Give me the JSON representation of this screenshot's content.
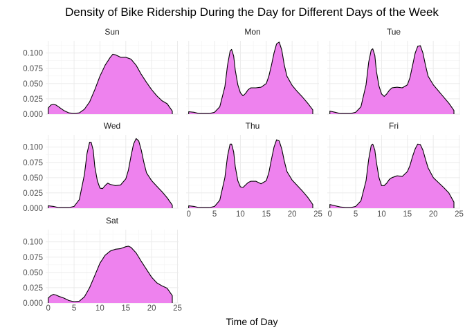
{
  "chart_data": {
    "type": "area",
    "title": "Density of Bike Ridership During the Day for Different Days of the Week",
    "xlabel": "Time of Day",
    "ylabel": "",
    "xlim": [
      0,
      24
    ],
    "ylim": [
      0,
      0.12
    ],
    "x_ticks": [
      0,
      5,
      10,
      15,
      20,
      25
    ],
    "x_tick_labels": [
      "0",
      "5",
      "10",
      "15",
      "20",
      "25"
    ],
    "y_ticks": [
      0,
      0.025,
      0.05,
      0.075,
      0.1
    ],
    "y_tick_labels": [
      "0.000",
      "0.025",
      "0.050",
      "0.075",
      "0.100"
    ],
    "grid": true,
    "fill_color": "#ee82ee",
    "line_color": "#000000",
    "panels": [
      {
        "name": "Sun",
        "x": [
          0,
          0.5,
          1,
          1.5,
          2,
          3,
          4,
          5,
          6,
          7,
          8,
          9,
          10,
          11,
          12,
          12.5,
          13,
          14,
          15,
          16,
          17,
          18,
          19,
          20,
          21,
          22,
          23,
          24
        ],
        "y": [
          0.01,
          0.015,
          0.016,
          0.015,
          0.012,
          0.006,
          0.002,
          0.001,
          0.002,
          0.008,
          0.02,
          0.04,
          0.062,
          0.08,
          0.093,
          0.098,
          0.097,
          0.093,
          0.093,
          0.09,
          0.08,
          0.065,
          0.052,
          0.04,
          0.03,
          0.022,
          0.017,
          0.005
        ]
      },
      {
        "name": "Mon",
        "x": [
          0,
          1,
          2,
          3,
          4,
          5,
          6,
          7,
          7.5,
          8,
          8.3,
          8.7,
          9,
          9.5,
          10,
          10.5,
          11,
          11.5,
          12,
          13,
          14,
          15,
          15.5,
          16,
          16.5,
          17,
          17.5,
          18,
          18.5,
          19,
          20,
          21,
          22,
          23,
          24
        ],
        "y": [
          0.004,
          0.003,
          0.001,
          0.001,
          0.001,
          0.003,
          0.012,
          0.045,
          0.08,
          0.103,
          0.106,
          0.095,
          0.072,
          0.048,
          0.035,
          0.03,
          0.034,
          0.04,
          0.043,
          0.043,
          0.044,
          0.05,
          0.062,
          0.08,
          0.1,
          0.115,
          0.118,
          0.105,
          0.08,
          0.062,
          0.047,
          0.037,
          0.028,
          0.018,
          0.007
        ]
      },
      {
        "name": "Tue",
        "x": [
          0,
          1,
          2,
          3,
          4,
          5,
          6,
          7,
          7.5,
          8,
          8.3,
          8.7,
          9,
          9.5,
          10,
          10.5,
          11,
          11.5,
          12,
          13,
          14,
          15,
          15.5,
          16,
          16.5,
          17,
          17.5,
          18,
          18.5,
          19,
          20,
          21,
          22,
          23,
          24
        ],
        "y": [
          0.005,
          0.003,
          0.001,
          0.001,
          0.001,
          0.003,
          0.012,
          0.048,
          0.085,
          0.105,
          0.107,
          0.096,
          0.07,
          0.046,
          0.033,
          0.029,
          0.033,
          0.039,
          0.043,
          0.044,
          0.043,
          0.048,
          0.06,
          0.08,
          0.1,
          0.111,
          0.112,
          0.1,
          0.08,
          0.062,
          0.048,
          0.038,
          0.028,
          0.018,
          0.006
        ]
      },
      {
        "name": "Wed",
        "x": [
          0,
          1,
          2,
          3,
          4,
          5,
          6,
          7,
          7.5,
          8,
          8.3,
          8.7,
          9,
          9.5,
          10,
          10.5,
          11,
          11.5,
          12,
          13,
          14,
          15,
          15.5,
          16,
          16.5,
          17,
          17.5,
          18,
          18.5,
          19,
          20,
          21,
          22,
          23,
          24
        ],
        "y": [
          0.004,
          0.003,
          0.001,
          0.001,
          0.001,
          0.003,
          0.014,
          0.055,
          0.09,
          0.108,
          0.108,
          0.095,
          0.068,
          0.045,
          0.033,
          0.032,
          0.037,
          0.041,
          0.039,
          0.037,
          0.038,
          0.048,
          0.062,
          0.085,
          0.105,
          0.114,
          0.11,
          0.095,
          0.075,
          0.058,
          0.045,
          0.036,
          0.027,
          0.017,
          0.005
        ]
      },
      {
        "name": "Thu",
        "x": [
          0,
          1,
          2,
          3,
          4,
          5,
          6,
          7,
          7.5,
          8,
          8.3,
          8.7,
          9,
          9.5,
          10,
          10.5,
          11,
          11.5,
          12,
          13,
          14,
          15,
          15.5,
          16,
          16.5,
          17,
          17.5,
          18,
          18.5,
          19,
          20,
          21,
          22,
          23,
          24
        ],
        "y": [
          0.004,
          0.003,
          0.001,
          0.001,
          0.001,
          0.003,
          0.013,
          0.05,
          0.085,
          0.105,
          0.105,
          0.092,
          0.068,
          0.045,
          0.035,
          0.034,
          0.038,
          0.042,
          0.044,
          0.044,
          0.04,
          0.045,
          0.058,
          0.08,
          0.1,
          0.112,
          0.11,
          0.097,
          0.077,
          0.06,
          0.046,
          0.037,
          0.028,
          0.018,
          0.006
        ]
      },
      {
        "name": "Fri",
        "x": [
          0,
          1,
          2,
          3,
          4,
          5,
          6,
          7,
          7.5,
          8,
          8.3,
          8.7,
          9,
          9.5,
          10,
          10.5,
          11,
          11.5,
          12,
          13,
          14,
          15,
          15.5,
          16,
          16.5,
          17,
          17.5,
          18,
          18.5,
          19,
          20,
          21,
          22,
          23,
          24
        ],
        "y": [
          0.006,
          0.004,
          0.002,
          0.001,
          0.001,
          0.003,
          0.012,
          0.045,
          0.08,
          0.103,
          0.105,
          0.095,
          0.075,
          0.05,
          0.037,
          0.037,
          0.041,
          0.047,
          0.05,
          0.053,
          0.052,
          0.06,
          0.07,
          0.085,
          0.097,
          0.105,
          0.104,
          0.095,
          0.08,
          0.066,
          0.05,
          0.042,
          0.034,
          0.025,
          0.01
        ]
      },
      {
        "name": "Sat",
        "x": [
          0,
          0.5,
          1,
          1.5,
          2,
          3,
          4,
          5,
          6,
          7,
          8,
          9,
          10,
          11,
          12,
          13,
          14,
          15,
          15.5,
          16,
          17,
          18,
          19,
          20,
          21,
          22,
          23,
          24
        ],
        "y": [
          0.008,
          0.012,
          0.014,
          0.013,
          0.011,
          0.008,
          0.004,
          0.002,
          0.003,
          0.01,
          0.025,
          0.045,
          0.065,
          0.078,
          0.085,
          0.088,
          0.089,
          0.092,
          0.093,
          0.091,
          0.082,
          0.068,
          0.055,
          0.042,
          0.033,
          0.028,
          0.024,
          0.012
        ]
      }
    ]
  }
}
